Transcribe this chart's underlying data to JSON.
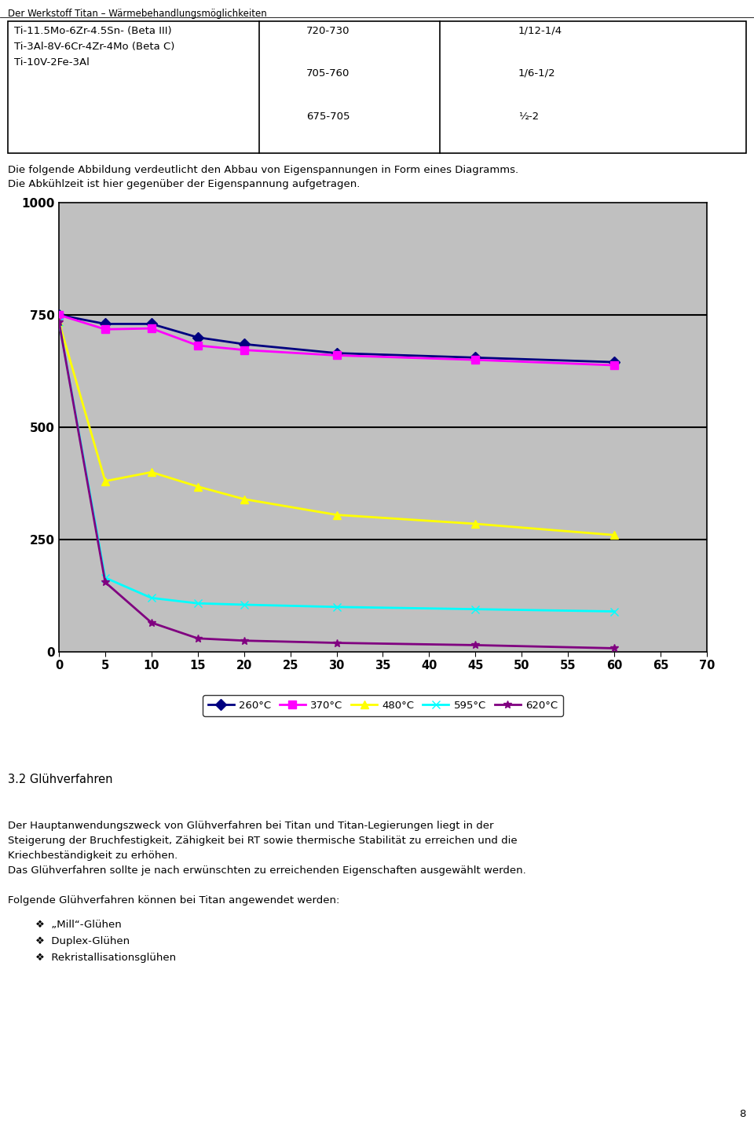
{
  "page_title": "Der Werkstoff Titan – Wärmebehandlungsmöglichkeiten",
  "page_number": "8",
  "table": {
    "col1": [
      "Ti-11.5Mo-6Zr-4.5Sn- (Beta III)",
      "Ti-3Al-8V-6Cr-4Zr-4Mo (Beta C)",
      "Ti-10V-2Fe-3Al"
    ],
    "col2": [
      "720-730",
      "705-760",
      "675-705"
    ],
    "col3": [
      "1/12-1/4",
      "1/6-1/2",
      "½-2"
    ]
  },
  "text1": "Die folgende Abbildung verdeutlicht den Abbau von Eigenspannungen in Form eines Diagramms.",
  "text2": "Die Abkühlzeit ist hier gegenüber der Eigenspannung aufgetragen.",
  "chart": {
    "xlim": [
      0,
      70
    ],
    "ylim": [
      0,
      1000
    ],
    "xticks": [
      0,
      5,
      10,
      15,
      20,
      25,
      30,
      35,
      40,
      45,
      50,
      55,
      60,
      65,
      70
    ],
    "yticks": [
      0,
      250,
      500,
      750,
      1000
    ],
    "bg_color": "#C0C0C0",
    "series": [
      {
        "label": "260°C",
        "color": "#000080",
        "marker": "D",
        "x": [
          0,
          5,
          10,
          15,
          20,
          30,
          45,
          60
        ],
        "y": [
          750,
          730,
          730,
          700,
          685,
          665,
          655,
          645
        ]
      },
      {
        "label": "370°C",
        "color": "#FF00FF",
        "marker": "s",
        "x": [
          0,
          5,
          10,
          15,
          20,
          30,
          45,
          60
        ],
        "y": [
          750,
          718,
          720,
          682,
          672,
          660,
          650,
          638
        ]
      },
      {
        "label": "480°C",
        "color": "#FFFF00",
        "marker": "^",
        "x": [
          0,
          5,
          10,
          15,
          20,
          30,
          45,
          60
        ],
        "y": [
          735,
          380,
          400,
          368,
          340,
          305,
          285,
          260
        ]
      },
      {
        "label": "595°C",
        "color": "#00FFFF",
        "marker": "x",
        "x": [
          0,
          5,
          10,
          15,
          20,
          30,
          45,
          60
        ],
        "y": [
          735,
          165,
          120,
          108,
          105,
          100,
          95,
          90
        ]
      },
      {
        "label": "620°C",
        "color": "#800080",
        "marker": "*",
        "x": [
          0,
          5,
          10,
          15,
          20,
          30,
          45,
          60
        ],
        "y": [
          735,
          155,
          65,
          30,
          25,
          20,
          15,
          8
        ]
      }
    ]
  },
  "section_title": "3.2 Glühverfahren",
  "body_lines": [
    "Der Hauptanwendungszweck von Glühverfahren bei Titan und Titan-Legierungen liegt in der",
    "Steigerung der Bruchfestigkeit, Zähigkeit bei RT sowie thermische Stabilität zu erreichen und die",
    "Kriechbeständigkeit zu erhöhen.",
    "Das Glühverfahren sollte je nach erwünschten zu erreichenden Eigenschaften ausgewählt werden.",
    "",
    "Folgende Glühverfahren können bei Titan angewendet werden:"
  ],
  "bullet_items": [
    "„Mill“-Glühen",
    "Duplex-Glühen",
    "Rekristallisationsglühen"
  ],
  "bullet_symbol": "❖"
}
